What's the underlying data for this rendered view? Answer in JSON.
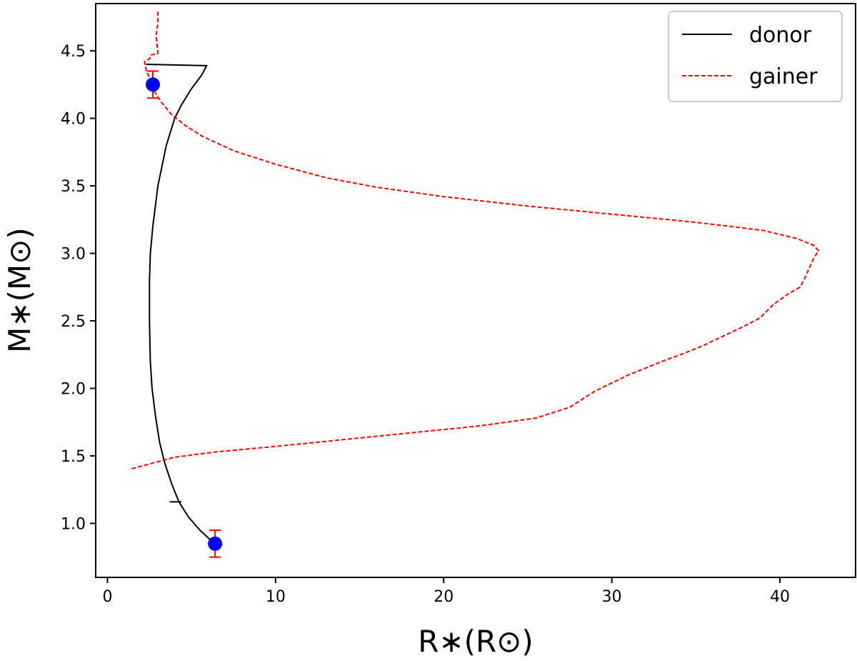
{
  "chart_data": {
    "type": "line",
    "title": "",
    "xlabel": "R∗(R⊙)",
    "ylabel": "M∗(M⊙)",
    "xlim": [
      -0.7,
      44.5
    ],
    "ylim": [
      0.6,
      4.85
    ],
    "xticks": [
      {
        "value": 0,
        "label": "0"
      },
      {
        "value": 10,
        "label": "10"
      },
      {
        "value": 20,
        "label": "20"
      },
      {
        "value": 30,
        "label": "30"
      },
      {
        "value": 40,
        "label": "40"
      }
    ],
    "yticks": [
      {
        "value": 1.0,
        "label": "1.0"
      },
      {
        "value": 1.5,
        "label": "1.5"
      },
      {
        "value": 2.0,
        "label": "2.0"
      },
      {
        "value": 2.5,
        "label": "2.5"
      },
      {
        "value": 3.0,
        "label": "3.0"
      },
      {
        "value": 3.5,
        "label": "3.5"
      },
      {
        "value": 4.0,
        "label": "4.0"
      },
      {
        "value": 4.5,
        "label": "4.5"
      }
    ],
    "grid": false,
    "legend_position": "top-right",
    "series": [
      {
        "name": "donor",
        "color": "#000000",
        "style": "solid",
        "points": [
          [
            2.3,
            4.4
          ],
          [
            5.9,
            4.39
          ],
          [
            5.6,
            4.32
          ],
          [
            5.0,
            4.22
          ],
          [
            4.4,
            4.1
          ],
          [
            4.0,
            4.0
          ],
          [
            3.5,
            3.8
          ],
          [
            3.0,
            3.5
          ],
          [
            2.7,
            3.2
          ],
          [
            2.55,
            3.0
          ],
          [
            2.5,
            2.8
          ],
          [
            2.5,
            2.5
          ],
          [
            2.55,
            2.2
          ],
          [
            2.65,
            2.0
          ],
          [
            2.85,
            1.8
          ],
          [
            3.1,
            1.6
          ],
          [
            3.4,
            1.45
          ],
          [
            3.8,
            1.3
          ],
          [
            4.25,
            1.16
          ],
          [
            4.8,
            1.05
          ],
          [
            5.5,
            0.95
          ],
          [
            6.1,
            0.88
          ],
          [
            6.4,
            0.85
          ]
        ]
      },
      {
        "name": "gainer",
        "color": "#ff0000",
        "style": "dashed",
        "points": [
          [
            3.0,
            4.79
          ],
          [
            3.0,
            4.7
          ],
          [
            2.9,
            4.62
          ],
          [
            2.95,
            4.55
          ],
          [
            3.0,
            4.48
          ],
          [
            2.6,
            4.47
          ],
          [
            2.5,
            4.44
          ],
          [
            2.2,
            4.42
          ],
          [
            2.3,
            4.36
          ],
          [
            2.5,
            4.3
          ],
          [
            2.8,
            4.2
          ],
          [
            3.2,
            4.12
          ],
          [
            3.8,
            4.03
          ],
          [
            4.6,
            3.95
          ],
          [
            5.6,
            3.87
          ],
          [
            7.5,
            3.76
          ],
          [
            10.0,
            3.66
          ],
          [
            13.0,
            3.56
          ],
          [
            16.0,
            3.49
          ],
          [
            20.0,
            3.42
          ],
          [
            25.0,
            3.35
          ],
          [
            30.0,
            3.29
          ],
          [
            35.0,
            3.23
          ],
          [
            39.0,
            3.17
          ],
          [
            41.0,
            3.11
          ],
          [
            42.0,
            3.06
          ],
          [
            42.3,
            3.02
          ],
          [
            42.0,
            2.96
          ],
          [
            41.7,
            2.88
          ],
          [
            41.5,
            2.82
          ],
          [
            41.2,
            2.75
          ],
          [
            40.5,
            2.7
          ],
          [
            39.6,
            2.62
          ],
          [
            38.8,
            2.52
          ],
          [
            37.7,
            2.45
          ],
          [
            36.5,
            2.38
          ],
          [
            35.5,
            2.32
          ],
          [
            34.3,
            2.26
          ],
          [
            33.0,
            2.2
          ],
          [
            31.0,
            2.1
          ],
          [
            29.0,
            1.98
          ],
          [
            27.5,
            1.86
          ],
          [
            25.5,
            1.78
          ],
          [
            22.0,
            1.72
          ],
          [
            18.0,
            1.67
          ],
          [
            14.0,
            1.62
          ],
          [
            10.0,
            1.57
          ],
          [
            6.5,
            1.53
          ],
          [
            4.0,
            1.49
          ],
          [
            2.5,
            1.44
          ],
          [
            1.3,
            1.4
          ]
        ]
      }
    ],
    "observations": {
      "color": "#0000ff",
      "error_color": "#ff0000",
      "points": [
        {
          "x": 2.7,
          "y": 4.25,
          "y_err": 0.1
        },
        {
          "x": 6.4,
          "y": 0.85,
          "y_err": 0.1
        }
      ]
    },
    "annotations": [
      {
        "type": "horizontal-tick",
        "x_from": 3.7,
        "x_to": 4.4,
        "y": 1.16
      }
    ]
  }
}
